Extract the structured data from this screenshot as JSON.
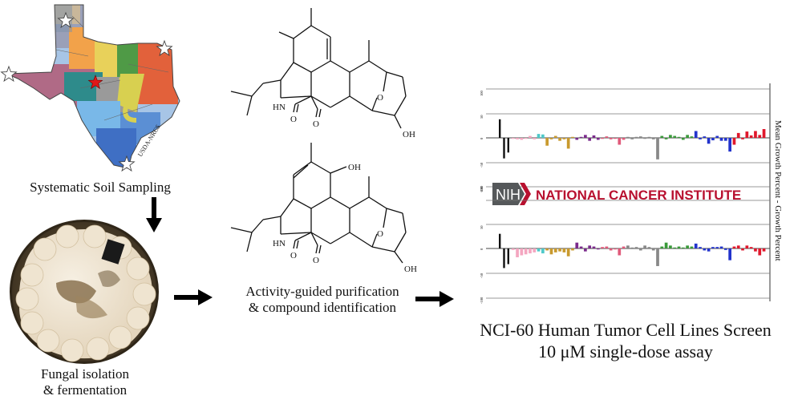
{
  "captions": {
    "soil": "Systematic Soil Sampling",
    "fungal_line1": "Fungal isolation",
    "fungal_line2": "& fermentation",
    "purification_line1": "Activity-guided purification",
    "purification_line2": "& compound identification",
    "screen_line1": "NCI-60 Human Tumor Cell Lines Screen",
    "screen_line2": "10 μM single-dose assay"
  },
  "map": {
    "watermark": "USDA-NRCS"
  },
  "molecules": {
    "top": {
      "nh": "HN",
      "o1": "O",
      "o2": "O",
      "bridge_o": "O",
      "oh": "OH"
    },
    "bottom": {
      "nh": "HN",
      "o1": "O",
      "o2": "O",
      "bridge_o": "O",
      "oh_top": "OH",
      "oh": "OH"
    }
  },
  "nci_panel": {
    "banner": {
      "logo": "NIH",
      "name": "NATIONAL CANCER INSTITUTE"
    },
    "side_label": "Mean Growth Percent - Growth Percent",
    "axis_ticks_top": [
      "100",
      "50",
      "0",
      "-50",
      "-100"
    ],
    "axis_ticks_bottom": [
      "100",
      "50",
      "0",
      "-50",
      "-100"
    ]
  },
  "chart_data": [
    {
      "type": "bar",
      "ylim": [
        -100,
        100
      ],
      "colors": [
        "#111111",
        "#f4a6c0",
        "#4fc9c9",
        "#c99a2e",
        "#7b2a8c",
        "#e05a7a",
        "#888888",
        "#3a9a3a",
        "#2233cc",
        "#e0182c"
      ],
      "series": [
        {
          "values": [
            38,
            -42,
            -30,
            -2,
            -3,
            -4,
            -2,
            4,
            -3,
            8,
            7,
            -16,
            -3,
            4,
            -6,
            -3,
            -22,
            2,
            -4,
            2,
            6,
            -6,
            5,
            -4,
            -2,
            3,
            -3,
            -2,
            -14,
            -4,
            2,
            -3,
            2,
            3,
            -2,
            2,
            -3,
            -44,
            4,
            -3,
            6,
            4,
            2,
            -4,
            6,
            3,
            14,
            -3,
            3,
            -12,
            -5,
            4,
            -6,
            -6,
            -28,
            -14,
            10,
            -3,
            13,
            5,
            14,
            6,
            18
          ]
        }
      ]
    },
    {
      "type": "bar",
      "ylim": [
        -100,
        100
      ],
      "colors": [
        "#111111",
        "#f4a6c0",
        "#4fc9c9",
        "#c99a2e",
        "#7b2a8c",
        "#e05a7a",
        "#888888",
        "#3a9a3a",
        "#2233cc",
        "#e0182c"
      ],
      "series": [
        {
          "values": [
            30,
            -40,
            -32,
            -3,
            -18,
            -14,
            -12,
            -10,
            -8,
            -6,
            -10,
            -4,
            -12,
            -8,
            -6,
            -8,
            -16,
            -4,
            12,
            4,
            -6,
            6,
            4,
            -2,
            3,
            4,
            -4,
            -2,
            -14,
            4,
            6,
            2,
            3,
            -4,
            6,
            3,
            -4,
            -36,
            4,
            12,
            6,
            2,
            4,
            2,
            6,
            4,
            10,
            3,
            -4,
            -6,
            3,
            3,
            4,
            -3,
            -24,
            4,
            6,
            -4,
            6,
            3,
            -6,
            -14,
            -6
          ]
        }
      ]
    }
  ]
}
